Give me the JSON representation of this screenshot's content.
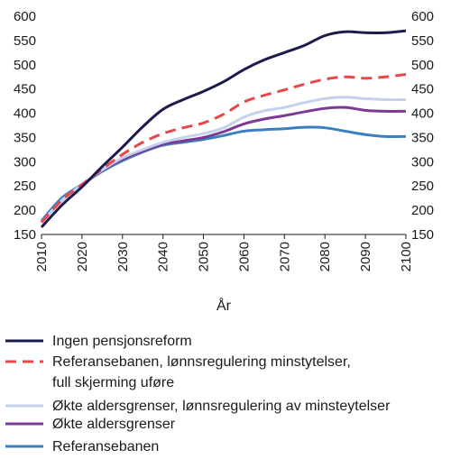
{
  "chart_data": {
    "type": "line",
    "xlabel": "År",
    "ylabel": "",
    "xlim": [
      2010,
      2100
    ],
    "ylim": [
      150,
      600
    ],
    "x_ticks": [
      "2010",
      "2020",
      "2030",
      "2040",
      "2050",
      "2060",
      "2070",
      "2080",
      "2090",
      "2100"
    ],
    "y_ticks": [
      "150",
      "200",
      "250",
      "300",
      "350",
      "400",
      "450",
      "500",
      "550",
      "600"
    ],
    "grid": false,
    "legend": "bottom",
    "series": [
      {
        "name": "Ingen pensjonsreform",
        "color": "#1b1b4d",
        "dash": "solid",
        "x": [
          2010,
          2015,
          2020,
          2025,
          2030,
          2035,
          2040,
          2045,
          2050,
          2055,
          2060,
          2065,
          2070,
          2075,
          2080,
          2085,
          2090,
          2095,
          2100
        ],
        "y": [
          165,
          210,
          248,
          290,
          330,
          372,
          408,
          428,
          445,
          465,
          490,
          510,
          525,
          540,
          560,
          568,
          566,
          566,
          570
        ]
      },
      {
        "name": "Referansebanen, lønnsregulering minstytelser, full skjerming uføre",
        "color": "#e8474c",
        "dash": "dashed",
        "x": [
          2010,
          2015,
          2020,
          2025,
          2030,
          2035,
          2040,
          2045,
          2050,
          2055,
          2060,
          2065,
          2070,
          2075,
          2080,
          2085,
          2090,
          2095,
          2100
        ],
        "y": [
          175,
          220,
          253,
          285,
          315,
          340,
          358,
          370,
          380,
          398,
          423,
          437,
          448,
          460,
          470,
          475,
          472,
          475,
          480
        ]
      },
      {
        "name": "Økte aldersgrenser, lønnsregulering av minsteytelser",
        "color": "#c5d2ed",
        "dash": "solid",
        "x": [
          2010,
          2015,
          2020,
          2025,
          2030,
          2035,
          2040,
          2045,
          2050,
          2055,
          2060,
          2065,
          2070,
          2075,
          2080,
          2085,
          2090,
          2095,
          2100
        ],
        "y": [
          175,
          220,
          253,
          283,
          308,
          325,
          340,
          350,
          358,
          370,
          392,
          405,
          412,
          422,
          430,
          433,
          430,
          428,
          428
        ]
      },
      {
        "name": "Økte aldersgrenser",
        "color": "#7b3a93",
        "dash": "solid",
        "x": [
          2010,
          2015,
          2020,
          2025,
          2030,
          2035,
          2040,
          2045,
          2050,
          2055,
          2060,
          2065,
          2070,
          2075,
          2080,
          2085,
          2090,
          2095,
          2100
        ],
        "y": [
          175,
          220,
          253,
          282,
          305,
          322,
          336,
          343,
          350,
          362,
          378,
          388,
          395,
          403,
          410,
          412,
          406,
          404,
          404
        ]
      },
      {
        "name": "Referansebanen",
        "color": "#3a7fc2",
        "dash": "solid",
        "x": [
          2010,
          2015,
          2020,
          2025,
          2030,
          2035,
          2040,
          2045,
          2050,
          2055,
          2060,
          2065,
          2070,
          2075,
          2080,
          2085,
          2090,
          2095,
          2100
        ],
        "y": [
          178,
          225,
          253,
          280,
          302,
          320,
          334,
          340,
          346,
          354,
          363,
          366,
          368,
          371,
          370,
          363,
          356,
          352,
          352
        ]
      }
    ]
  }
}
